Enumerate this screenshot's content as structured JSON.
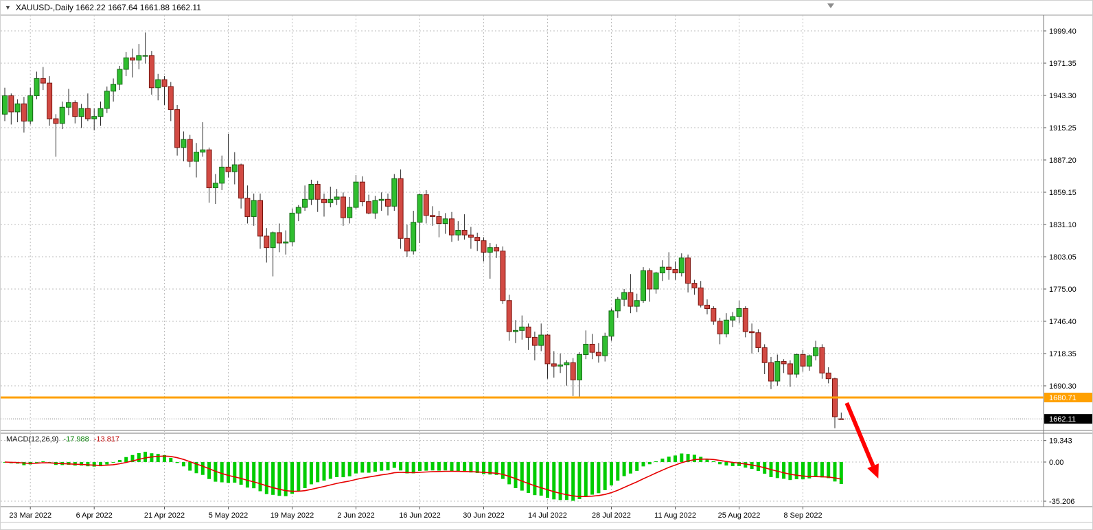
{
  "header": {
    "expander": "▼",
    "symbol_line": "XAUUSD-,Daily 1662.22 1667.64 1661.88 1662.11"
  },
  "macd_label": {
    "name": "MACD(12,26,9)",
    "value_main": "-17.988",
    "value_signal": "-13.817"
  },
  "chart_data": {
    "type": "candlestick",
    "title": "XAUUSD-,Daily",
    "ohlc_line": {
      "open": "1662.22",
      "high": "1667.64",
      "low": "1661.88",
      "close": "1662.11"
    },
    "price_axis_labels": [
      "1999.40",
      "1971.35",
      "1943.30",
      "1915.25",
      "1887.20",
      "1859.15",
      "1831.10",
      "1803.05",
      "1775.00",
      "1746.40",
      "1718.35",
      "1690.30"
    ],
    "x_axis_ticks": [
      {
        "index": 4,
        "label": "23 Mar 2022"
      },
      {
        "index": 14,
        "label": "6 Apr 2022"
      },
      {
        "index": 25,
        "label": "21 Apr 2022"
      },
      {
        "index": 35,
        "label": "5 May 2022"
      },
      {
        "index": 45,
        "label": "19 May 2022"
      },
      {
        "index": 55,
        "label": "2 Jun 2022"
      },
      {
        "index": 65,
        "label": "16 Jun 2022"
      },
      {
        "index": 75,
        "label": "30 Jun 2022"
      },
      {
        "index": 85,
        "label": "14 Jul 2022"
      },
      {
        "index": 95,
        "label": "28 Jul 2022"
      },
      {
        "index": 105,
        "label": "11 Aug 2022"
      },
      {
        "index": 115,
        "label": "25 Aug 2022"
      },
      {
        "index": 125,
        "label": "8 Sep 2022"
      }
    ],
    "candles": [
      [
        1927,
        1950,
        1921,
        1943
      ],
      [
        1943,
        1945,
        1918,
        1929
      ],
      [
        1929,
        1940,
        1920,
        1936
      ],
      [
        1936,
        1942,
        1911,
        1921
      ],
      [
        1921,
        1950,
        1918,
        1943
      ],
      [
        1943,
        1964,
        1940,
        1958
      ],
      [
        1958,
        1968,
        1948,
        1954
      ],
      [
        1954,
        1960,
        1917,
        1923
      ],
      [
        1923,
        1927,
        1890,
        1919
      ],
      [
        1919,
        1938,
        1914,
        1933
      ],
      [
        1933,
        1949,
        1926,
        1937
      ],
      [
        1937,
        1939,
        1919,
        1925
      ],
      [
        1925,
        1936,
        1915,
        1932
      ],
      [
        1932,
        1945,
        1921,
        1923
      ],
      [
        1923,
        1932,
        1913,
        1925
      ],
      [
        1925,
        1938,
        1917,
        1932
      ],
      [
        1932,
        1951,
        1928,
        1947
      ],
      [
        1947,
        1958,
        1938,
        1953
      ],
      [
        1953,
        1969,
        1948,
        1966
      ],
      [
        1966,
        1981,
        1960,
        1976
      ],
      [
        1976,
        1984,
        1959,
        1974
      ],
      [
        1974,
        1988,
        1966,
        1978
      ],
      [
        1978,
        1998,
        1971,
        1978
      ],
      [
        1978,
        1982,
        1944,
        1950
      ],
      [
        1950,
        1962,
        1939,
        1957
      ],
      [
        1957,
        1960,
        1935,
        1951
      ],
      [
        1951,
        1955,
        1921,
        1931
      ],
      [
        1931,
        1935,
        1891,
        1898
      ],
      [
        1898,
        1912,
        1886,
        1905
      ],
      [
        1905,
        1909,
        1881,
        1886
      ],
      [
        1886,
        1902,
        1872,
        1894
      ],
      [
        1894,
        1920,
        1890,
        1896
      ],
      [
        1896,
        1898,
        1850,
        1863
      ],
      [
        1863,
        1875,
        1849,
        1867
      ],
      [
        1867,
        1891,
        1861,
        1881
      ],
      [
        1881,
        1910,
        1872,
        1877
      ],
      [
        1877,
        1894,
        1866,
        1883
      ],
      [
        1883,
        1884,
        1845,
        1854
      ],
      [
        1854,
        1865,
        1832,
        1838
      ],
      [
        1838,
        1858,
        1830,
        1852
      ],
      [
        1852,
        1858,
        1810,
        1821
      ],
      [
        1821,
        1828,
        1798,
        1811
      ],
      [
        1811,
        1825,
        1786,
        1824
      ],
      [
        1824,
        1832,
        1807,
        1815
      ],
      [
        1815,
        1826,
        1805,
        1816
      ],
      [
        1816,
        1845,
        1812,
        1841
      ],
      [
        1841,
        1848,
        1834,
        1846
      ],
      [
        1846,
        1865,
        1843,
        1853
      ],
      [
        1853,
        1870,
        1848,
        1866
      ],
      [
        1866,
        1869,
        1842,
        1853
      ],
      [
        1853,
        1858,
        1838,
        1850
      ],
      [
        1850,
        1864,
        1846,
        1853
      ],
      [
        1853,
        1862,
        1848,
        1855
      ],
      [
        1855,
        1859,
        1830,
        1837
      ],
      [
        1837,
        1855,
        1832,
        1846
      ],
      [
        1846,
        1874,
        1844,
        1868
      ],
      [
        1868,
        1873,
        1847,
        1851
      ],
      [
        1851,
        1857,
        1840,
        1841
      ],
      [
        1841,
        1856,
        1836,
        1852
      ],
      [
        1852,
        1859,
        1843,
        1853
      ],
      [
        1853,
        1858,
        1839,
        1847
      ],
      [
        1847,
        1875,
        1843,
        1871
      ],
      [
        1871,
        1879,
        1810,
        1819
      ],
      [
        1819,
        1831,
        1803,
        1808
      ],
      [
        1808,
        1843,
        1805,
        1833
      ],
      [
        1833,
        1858,
        1815,
        1857
      ],
      [
        1857,
        1861,
        1832,
        1839
      ],
      [
        1839,
        1847,
        1830,
        1838
      ],
      [
        1838,
        1843,
        1820,
        1832
      ],
      [
        1832,
        1841,
        1823,
        1836
      ],
      [
        1836,
        1842,
        1816,
        1822
      ],
      [
        1822,
        1834,
        1817,
        1826
      ],
      [
        1826,
        1840,
        1818,
        1822
      ],
      [
        1822,
        1829,
        1810,
        1820
      ],
      [
        1820,
        1824,
        1808,
        1817
      ],
      [
        1817,
        1820,
        1799,
        1807
      ],
      [
        1807,
        1815,
        1784,
        1811
      ],
      [
        1811,
        1814,
        1802,
        1808
      ],
      [
        1808,
        1812,
        1762,
        1765
      ],
      [
        1765,
        1770,
        1730,
        1738
      ],
      [
        1738,
        1748,
        1728,
        1739
      ],
      [
        1739,
        1752,
        1731,
        1742
      ],
      [
        1742,
        1745,
        1722,
        1733
      ],
      [
        1733,
        1738,
        1713,
        1726
      ],
      [
        1726,
        1745,
        1721,
        1735
      ],
      [
        1735,
        1736,
        1697,
        1710
      ],
      [
        1710,
        1721,
        1698,
        1708
      ],
      [
        1708,
        1719,
        1702,
        1709
      ],
      [
        1709,
        1713,
        1691,
        1711
      ],
      [
        1711,
        1715,
        1682,
        1696
      ],
      [
        1696,
        1720,
        1681,
        1718
      ],
      [
        1718,
        1739,
        1714,
        1727
      ],
      [
        1727,
        1736,
        1714,
        1720
      ],
      [
        1720,
        1728,
        1711,
        1717
      ],
      [
        1717,
        1737,
        1712,
        1734
      ],
      [
        1734,
        1758,
        1730,
        1756
      ],
      [
        1756,
        1768,
        1750,
        1766
      ],
      [
        1766,
        1775,
        1760,
        1772
      ],
      [
        1772,
        1788,
        1754,
        1760
      ],
      [
        1760,
        1771,
        1755,
        1765
      ],
      [
        1765,
        1794,
        1763,
        1791
      ],
      [
        1791,
        1793,
        1764,
        1775
      ],
      [
        1775,
        1790,
        1771,
        1789
      ],
      [
        1789,
        1800,
        1782,
        1794
      ],
      [
        1794,
        1807,
        1783,
        1792
      ],
      [
        1792,
        1799,
        1783,
        1789
      ],
      [
        1789,
        1806,
        1786,
        1802
      ],
      [
        1802,
        1805,
        1772,
        1780
      ],
      [
        1780,
        1783,
        1770,
        1776
      ],
      [
        1776,
        1782,
        1759,
        1761
      ],
      [
        1761,
        1766,
        1753,
        1758
      ],
      [
        1758,
        1760,
        1744,
        1747
      ],
      [
        1747,
        1750,
        1727,
        1736
      ],
      [
        1736,
        1754,
        1733,
        1748
      ],
      [
        1748,
        1755,
        1742,
        1751
      ],
      [
        1751,
        1765,
        1745,
        1758
      ],
      [
        1758,
        1760,
        1733,
        1738
      ],
      [
        1738,
        1745,
        1719,
        1737
      ],
      [
        1737,
        1740,
        1720,
        1724
      ],
      [
        1724,
        1727,
        1701,
        1711
      ],
      [
        1711,
        1716,
        1688,
        1695
      ],
      [
        1695,
        1718,
        1691,
        1712
      ],
      [
        1712,
        1714,
        1702,
        1710
      ],
      [
        1710,
        1713,
        1690,
        1701
      ],
      [
        1701,
        1719,
        1698,
        1718
      ],
      [
        1718,
        1722,
        1703,
        1708
      ],
      [
        1708,
        1718,
        1704,
        1717
      ],
      [
        1717,
        1730,
        1713,
        1724
      ],
      [
        1724,
        1727,
        1697,
        1702
      ],
      [
        1702,
        1707,
        1693,
        1697
      ],
      [
        1697,
        1698,
        1654,
        1664
      ],
      [
        1662.22,
        1667.64,
        1661.88,
        1662.11
      ]
    ],
    "horizontal_line": {
      "price": 1680.71,
      "label": "1680.71",
      "color": "#FFA000"
    },
    "bid_line": {
      "price": 1662.11,
      "label": "1662.11",
      "color": "#000000"
    },
    "macd": {
      "name": "MACD(12,26,9)",
      "fast": 12,
      "slow": 26,
      "signal": 9,
      "display_main": "-17.988",
      "display_signal": "-13.817",
      "axis_labels": [
        "19.343",
        "0.00",
        "-35.206"
      ],
      "histogram_color": "#00CC00",
      "signal_color": "#E60000"
    },
    "colors": {
      "bull_fill": "#2FBE2F",
      "bull_stroke": "#156815",
      "bear_fill": "#D24A43",
      "bear_stroke": "#79150F",
      "wick": "#2a2a2a",
      "grid": "#bdbdbd"
    },
    "arrow": {
      "color": "#FF0000"
    },
    "ylim": [
      1652,
      2013
    ],
    "macd_ylim": [
      -42,
      24
    ],
    "xlabel": "",
    "ylabel": ""
  }
}
